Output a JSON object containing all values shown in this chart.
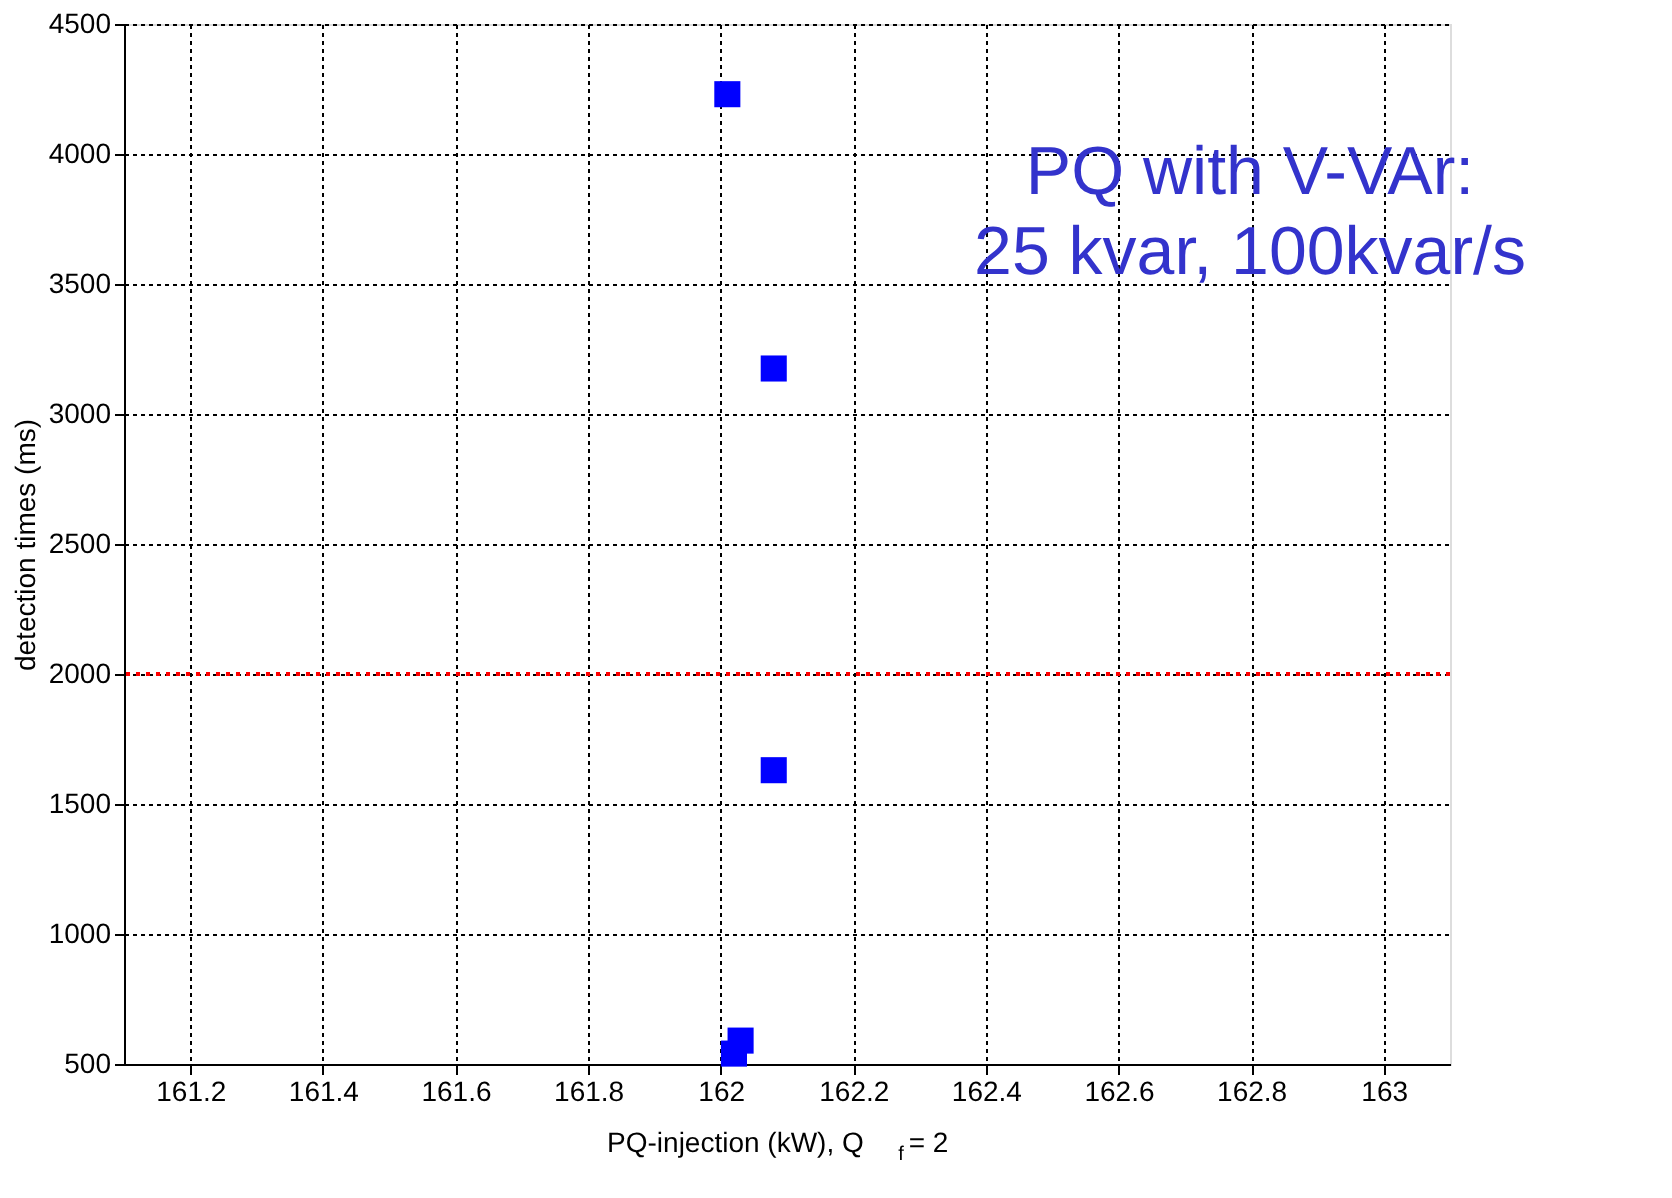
{
  "chart_data": {
    "type": "scatter",
    "xlabel": "PQ-injection (kW), Q$_{f}$ = 2",
    "ylabel": "detection times (ms)",
    "x": [
      162.01,
      162.08,
      162.08,
      162.03,
      162.02
    ],
    "series": [
      {
        "color": "#0000ff",
        "values": [
          4230,
          3175,
          1630,
          590,
          540
        ]
      }
    ],
    "marker": "square",
    "grid": true,
    "xlim": [
      161.1,
      163.1
    ],
    "xticks": [
      161.2,
      161.4,
      161.6,
      161.8,
      162,
      162.2,
      162.4,
      162.6,
      162.8,
      163
    ],
    "ylim": [
      500,
      4500
    ],
    "yticks": [
      500,
      1000,
      1500,
      2000,
      2500,
      3000,
      3500,
      4000,
      4500
    ],
    "ref_lines": [
      {
        "axis": "y",
        "value": 2000,
        "color": "#ff0000",
        "line_style": "dotted"
      }
    ],
    "annotations": [
      "PQ with V-VAr:\n25 kvar, 100kvar/s"
    ]
  }
}
